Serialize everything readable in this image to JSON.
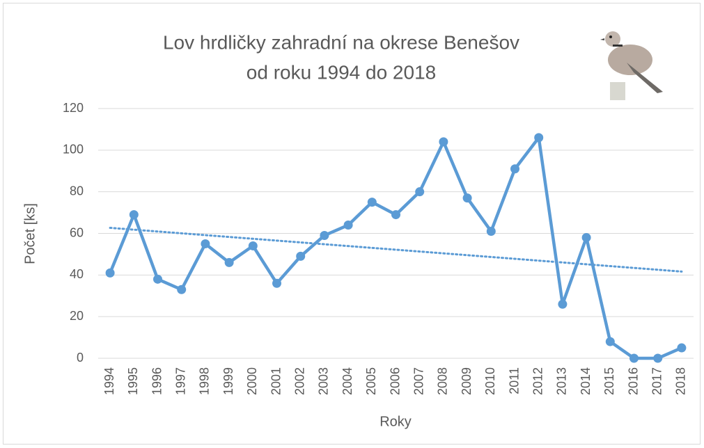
{
  "chart_data": {
    "type": "line",
    "title": [
      "Lov hrdličky zahradní na okrese Benešov",
      "od roku 1994 do 2018"
    ],
    "x_label": "Roky",
    "y_label": "Počet [ks]",
    "categories": [
      "1994",
      "1995",
      "1996",
      "1997",
      "1998",
      "1999",
      "2000",
      "2001",
      "2002",
      "2003",
      "2004",
      "2005",
      "2006",
      "2007",
      "2008",
      "2009",
      "2010",
      "2011",
      "2012",
      "2013",
      "2014",
      "2015",
      "2016",
      "2017",
      "2018"
    ],
    "series": [
      {
        "color": "#5b9bd5",
        "values": [
          41,
          69,
          38,
          33,
          55,
          46,
          54,
          36,
          49,
          59,
          64,
          75,
          69,
          80,
          104,
          77,
          61,
          91,
          106,
          26,
          58,
          8,
          0,
          0,
          5
        ]
      }
    ],
    "trendline": "linear",
    "ylim": [
      0,
      120
    ],
    "yticks": [
      0,
      20,
      40,
      60,
      80,
      100,
      120
    ],
    "grid": true
  }
}
